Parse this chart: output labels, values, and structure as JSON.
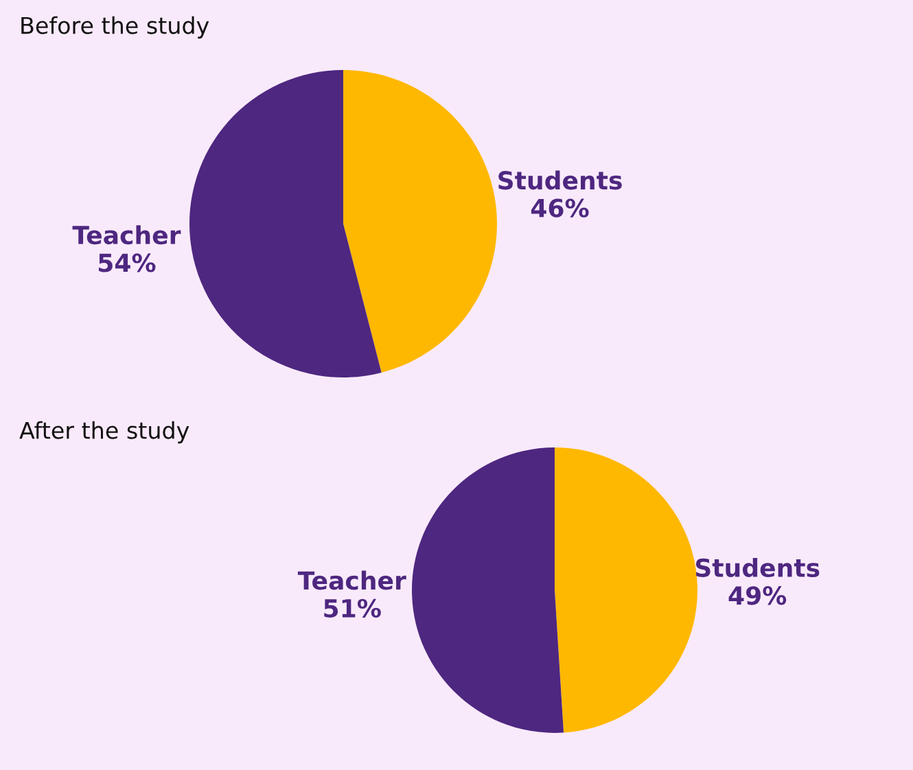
{
  "chart_data": [
    {
      "type": "pie",
      "title": "Before the study",
      "categories": [
        "Students",
        "Teacher"
      ],
      "values": [
        46,
        54
      ],
      "value_labels": [
        "46%",
        "54%"
      ],
      "colors": [
        "#ffb800",
        "#4e2780"
      ]
    },
    {
      "type": "pie",
      "title": "After the study",
      "categories": [
        "Students",
        "Teacher"
      ],
      "values": [
        49,
        51
      ],
      "value_labels": [
        "49%",
        "51%"
      ],
      "colors": [
        "#ffb800",
        "#4e2780"
      ]
    }
  ]
}
